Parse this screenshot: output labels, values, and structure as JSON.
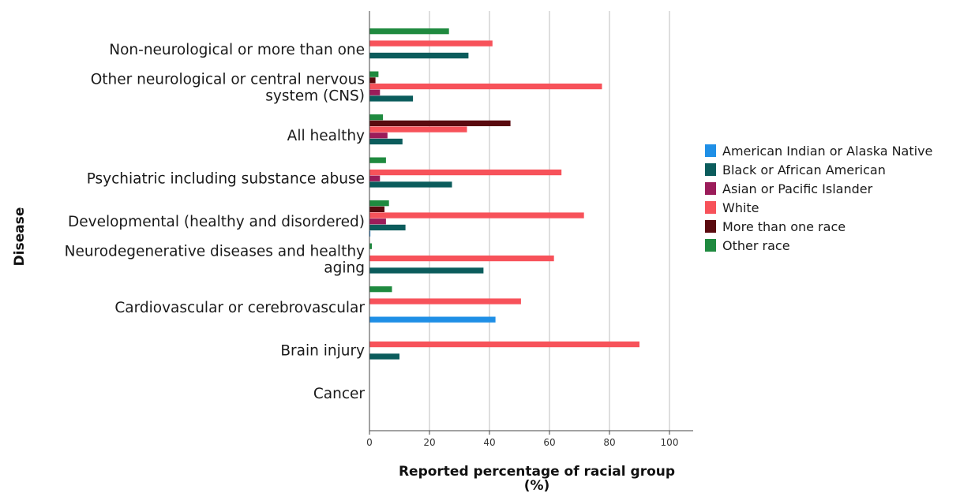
{
  "chart_data": {
    "type": "bar",
    "orientation": "horizontal",
    "categories": [
      [
        "Non-neurological or more than one"
      ],
      [
        "Other neurological or central nervous",
        "system (CNS)"
      ],
      [
        "All healthy"
      ],
      [
        "Psychiatric including substance abuse"
      ],
      [
        "Developmental (healthy and disordered)"
      ],
      [
        "Neurodegenerative diseases and healthy",
        "aging"
      ],
      [
        "Cardiovascular or cerebrovascular"
      ],
      [
        "Brain injury"
      ],
      [
        "Cancer"
      ]
    ],
    "series": [
      {
        "name": "American Indian or Alaska Native",
        "color": "#1f8fe6",
        "values": [
          null,
          null,
          null,
          null,
          0.3,
          null,
          42,
          null,
          null
        ]
      },
      {
        "name": "Black or African American",
        "color": "#0b5c5c",
        "values": [
          33,
          14.5,
          11,
          27.5,
          12,
          38,
          null,
          10,
          null
        ]
      },
      {
        "name": "Asian or Pacific Islander",
        "color": "#9b1c5a",
        "values": [
          null,
          3.5,
          6,
          3.5,
          5.5,
          null,
          null,
          null,
          null
        ]
      },
      {
        "name": "White",
        "color": "#f7525a",
        "values": [
          41,
          77.5,
          32.5,
          64,
          71.5,
          61.5,
          50.5,
          90,
          null
        ]
      },
      {
        "name": "More than one race",
        "color": "#5a0a0f",
        "values": [
          null,
          2,
          47,
          null,
          5,
          null,
          null,
          null,
          null
        ]
      },
      {
        "name": "Other race",
        "color": "#1f8a3f",
        "values": [
          26.5,
          3,
          4.5,
          5.5,
          6.5,
          0.8,
          7.5,
          null,
          null
        ]
      }
    ],
    "xlabel": [
      "Reported percentage of racial group",
      "(%)"
    ],
    "ylabel": "Disease",
    "xlim": [
      0,
      108
    ],
    "xticks": [
      0,
      20,
      40,
      60,
      80,
      100
    ],
    "grid": "vertical",
    "legend": "right"
  }
}
